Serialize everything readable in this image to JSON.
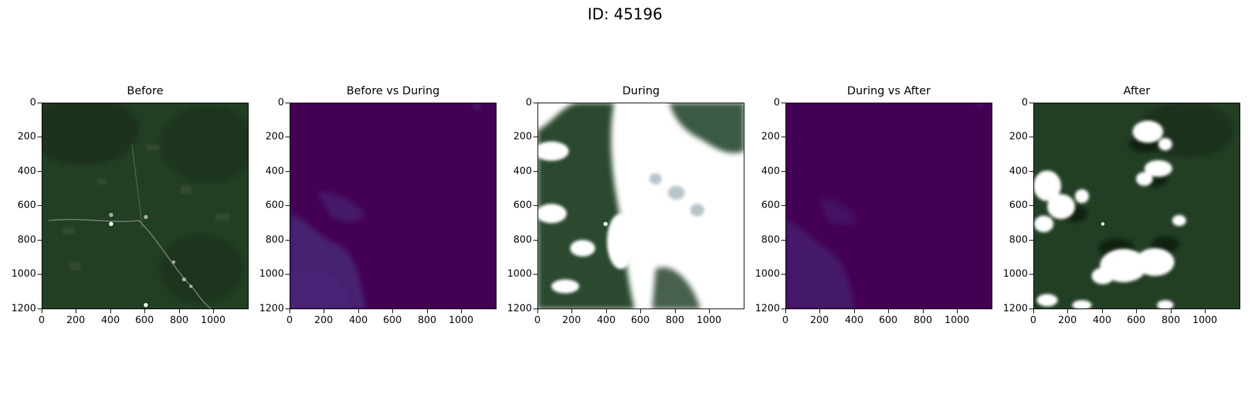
{
  "figure": {
    "title": "ID: 45196"
  },
  "axes": {
    "y_ticks": [
      "0",
      "200",
      "400",
      "600",
      "800",
      "1000",
      "1200"
    ],
    "x_ticks": [
      "0",
      "200",
      "400",
      "600",
      "800",
      "1000"
    ],
    "range": [
      0,
      1200
    ]
  },
  "panels": [
    {
      "id": "before",
      "title": "Before",
      "kind": "satellite-rgb",
      "cloud_cover": "low"
    },
    {
      "id": "before-vs-during",
      "title": "Before vs During",
      "kind": "difference-map",
      "colormap": "viridis"
    },
    {
      "id": "during",
      "title": "During",
      "kind": "satellite-rgb",
      "cloud_cover": "high"
    },
    {
      "id": "during-vs-after",
      "title": "During vs After",
      "kind": "difference-map",
      "colormap": "viridis"
    },
    {
      "id": "after",
      "title": "After",
      "kind": "satellite-rgb",
      "cloud_cover": "medium"
    }
  ],
  "colors": {
    "forest": "#223f24",
    "forest_dark": "#162a18",
    "diff_base": "#440154",
    "diff_low": "#472d7b",
    "cloud": "#ffffff"
  }
}
